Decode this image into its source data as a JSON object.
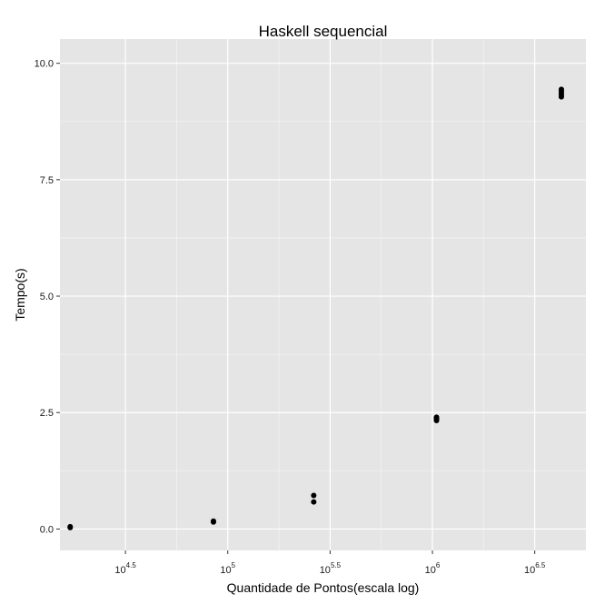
{
  "chart_data": {
    "type": "scatter",
    "title": "Haskell sequencial",
    "xlabel": "Quantidade de Pontos(escala log)",
    "ylabel": "Tempo(s)",
    "x_scale": "log10",
    "xlim_log10": [
      4.18,
      6.75
    ],
    "ylim": [
      -0.46,
      10.52
    ],
    "grid": true,
    "x_ticks": [
      {
        "exponent": 4.5,
        "base": "10",
        "sup": "4.5"
      },
      {
        "exponent": 5,
        "base": "10",
        "sup": "5"
      },
      {
        "exponent": 5.5,
        "base": "10",
        "sup": "5.5"
      },
      {
        "exponent": 6,
        "base": "10",
        "sup": "6"
      },
      {
        "exponent": 6.5,
        "base": "10",
        "sup": "6.5"
      }
    ],
    "y_ticks": [
      {
        "value": 0,
        "label": "0.0"
      },
      {
        "value": 2.5,
        "label": "2.5"
      },
      {
        "value": 5,
        "label": "5.0"
      },
      {
        "value": 7.5,
        "label": "7.5"
      },
      {
        "value": 10,
        "label": "10.0"
      }
    ],
    "points_log10x": [
      [
        4.23,
        0.03
      ],
      [
        4.23,
        0.05
      ],
      [
        4.93,
        0.15
      ],
      [
        4.93,
        0.17
      ],
      [
        5.42,
        0.58
      ],
      [
        5.42,
        0.72
      ],
      [
        6.02,
        2.33
      ],
      [
        6.02,
        2.36
      ],
      [
        6.02,
        2.38
      ],
      [
        6.02,
        2.4
      ],
      [
        6.63,
        9.28
      ],
      [
        6.63,
        9.32
      ],
      [
        6.63,
        9.36
      ],
      [
        6.63,
        9.4
      ],
      [
        6.63,
        9.44
      ]
    ],
    "colors": {
      "panel": "#e5e5e5",
      "grid_major": "#ffffff",
      "grid_minor": "#f2f2f2",
      "point": "#000000"
    }
  }
}
